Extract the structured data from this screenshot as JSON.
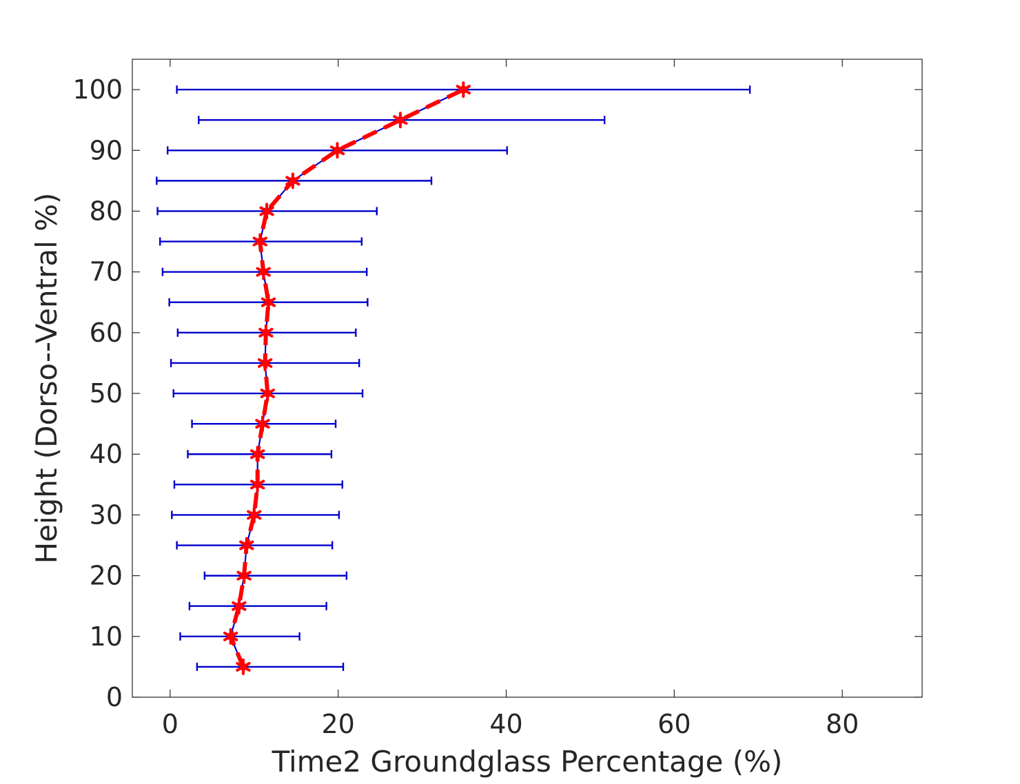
{
  "chart_data": {
    "type": "line",
    "title": "",
    "xlabel": "Time2 Groundglass Percentage (%)",
    "ylabel": "Height (Dorso--Ventral %)",
    "xlim": [
      -4.5,
      89.5
    ],
    "ylim": [
      0,
      105
    ],
    "xticks": [
      0,
      20,
      40,
      60,
      80
    ],
    "yticks": [
      0,
      10,
      20,
      30,
      40,
      50,
      60,
      70,
      80,
      90,
      100
    ],
    "grid": false,
    "legend": "none",
    "colors": {
      "mean_line": "#ff0000",
      "error_bars": "#0000cc",
      "axes": "#262626"
    },
    "series": [
      {
        "type": "errorbar-horizontal",
        "y": [
          5,
          10,
          15,
          20,
          25,
          30,
          35,
          40,
          45,
          50,
          55,
          60,
          65,
          70,
          75,
          80,
          85,
          90,
          95,
          100
        ],
        "x": [
          8.7,
          7.2,
          8.2,
          8.8,
          9.1,
          10.0,
          10.4,
          10.4,
          11.0,
          11.6,
          11.3,
          11.4,
          11.7,
          11.1,
          10.7,
          11.5,
          14.6,
          19.9,
          27.4,
          34.9
        ],
        "xneg": [
          3.2,
          1.2,
          2.3,
          4.1,
          0.8,
          0.2,
          0.5,
          2.1,
          2.6,
          0.4,
          0.1,
          0.9,
          -0.1,
          -0.9,
          -1.2,
          -1.5,
          -1.6,
          -0.3,
          3.4,
          0.8
        ],
        "xpos": [
          20.6,
          15.4,
          18.6,
          21.0,
          19.3,
          20.1,
          20.5,
          19.2,
          19.7,
          22.9,
          22.5,
          22.1,
          23.5,
          23.4,
          22.8,
          24.6,
          31.1,
          40.1,
          51.7,
          69.0
        ]
      }
    ]
  }
}
